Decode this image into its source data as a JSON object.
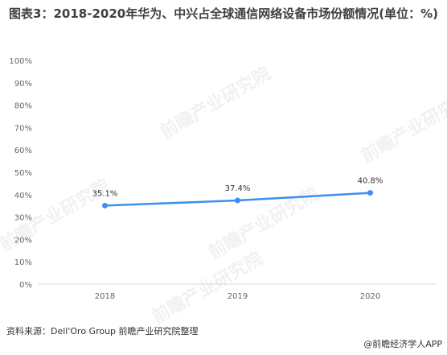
{
  "title": "图表3：2018-2020年华为、中兴占全球通信网络设备市场份额情况(单位：%)",
  "watermark": "前瞻产业研究院",
  "source": "资料来源：Dell'Oro Group 前瞻产业研究院整理",
  "brand": "@前瞻经济学人APP",
  "colors": {
    "series": "#3b8ff0",
    "axis": "#d9d9d9",
    "text": "#666666"
  },
  "chart_data": {
    "type": "line",
    "title": "图表3：2018-2020年华为、中兴占全球通信网络设备市场份额情况(单位：%)",
    "categories": [
      "2018",
      "2019",
      "2020"
    ],
    "series": [
      {
        "values": [
          35.1,
          37.4,
          40.8
        ],
        "data_labels": [
          "35.1%",
          "37.4%",
          "40.8%"
        ]
      }
    ],
    "yticks": [
      "0%",
      "10%",
      "20%",
      "30%",
      "40%",
      "50%",
      "60%",
      "70%",
      "80%",
      "90%",
      "100%"
    ],
    "ylim": [
      0,
      100
    ],
    "grid": false,
    "legend": "none"
  }
}
